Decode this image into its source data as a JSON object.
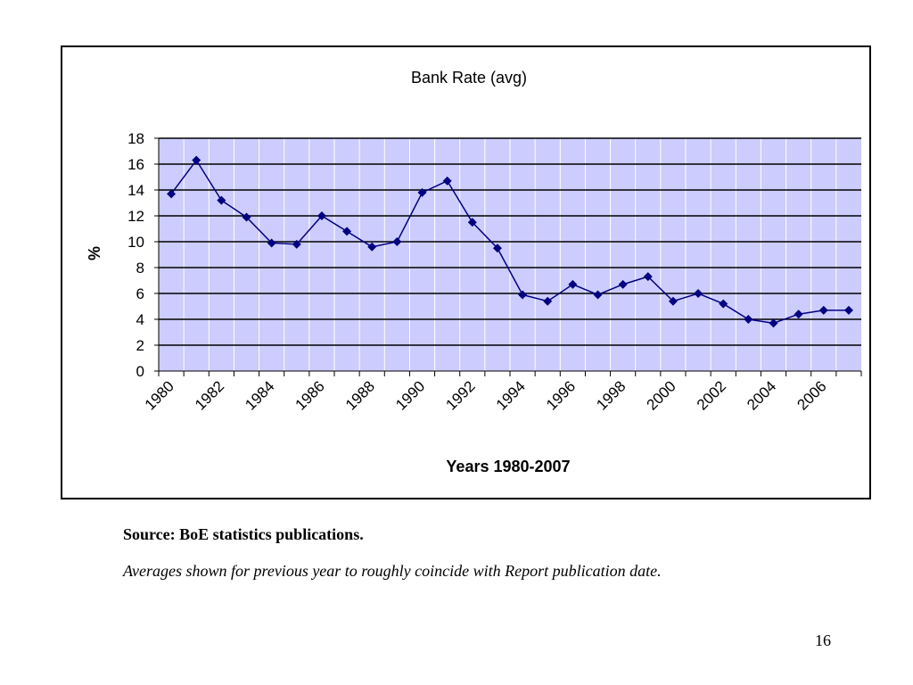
{
  "chart_data": {
    "type": "line",
    "title": "Bank Rate (avg)",
    "xlabel": "Years 1980-2007",
    "ylabel": "%",
    "ylim": [
      0,
      18
    ],
    "y_ticks": [
      "0",
      "2",
      "4",
      "6",
      "8",
      "10",
      "12",
      "14",
      "16",
      "18"
    ],
    "x_tick_labels": [
      "1980",
      "1982",
      "1984",
      "1986",
      "1988",
      "1990",
      "1992",
      "1994",
      "1996",
      "1998",
      "2000",
      "2002",
      "2004",
      "2006"
    ],
    "grid": true,
    "legend": "none",
    "series": [
      {
        "x": [
          1980,
          1981,
          1982,
          1983,
          1984,
          1985,
          1986,
          1987,
          1988,
          1989,
          1990,
          1991,
          1992,
          1993,
          1994,
          1995,
          1996,
          1997,
          1998,
          1999,
          2000,
          2001,
          2002,
          2003,
          2004,
          2005,
          2006,
          2007
        ],
        "values": [
          13.7,
          16.3,
          13.2,
          11.9,
          9.9,
          9.8,
          12.0,
          10.8,
          9.6,
          10.0,
          13.8,
          14.7,
          11.5,
          9.5,
          5.9,
          5.4,
          6.7,
          5.9,
          6.7,
          7.3,
          5.4,
          6.0,
          5.2,
          4.0,
          3.7,
          4.4,
          4.7,
          4.7
        ]
      }
    ],
    "colors": {
      "plot_background": "#ccccff",
      "series_line": "#000080",
      "vertical_grid": "#ffffff",
      "horizontal_grid": "#000000"
    }
  },
  "notes": {
    "source": "Source: BoE statistics publications.",
    "averages": "Averages shown for previous year to roughly coincide with Report publication date."
  },
  "page_number": "16"
}
